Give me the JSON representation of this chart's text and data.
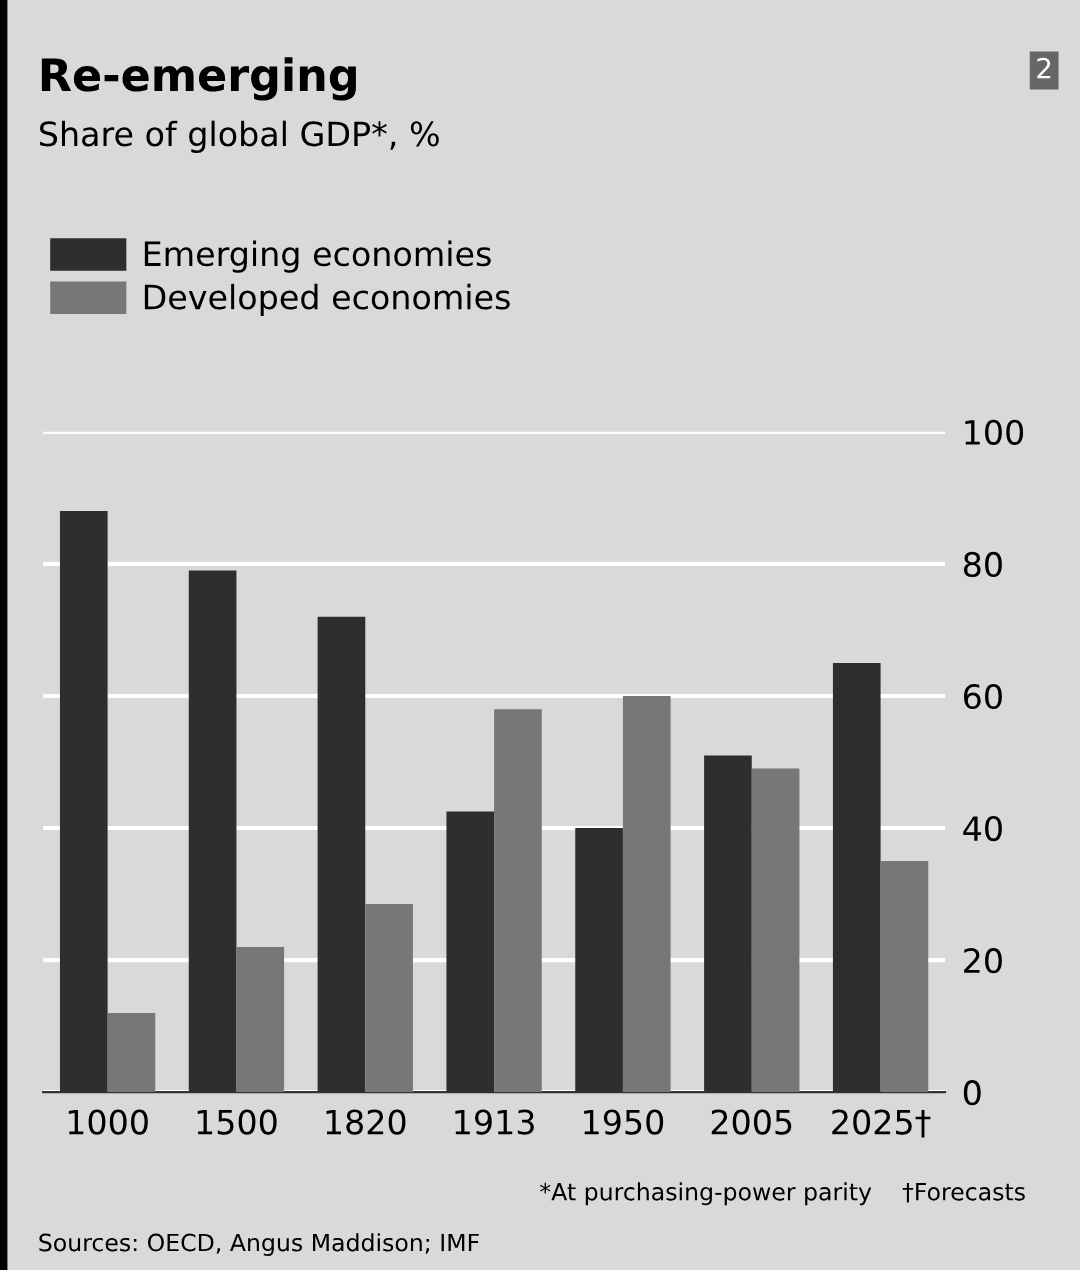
{
  "chart_data": {
    "type": "bar",
    "title": "Re-emerging",
    "subtitle": "Share of global GDP*, %",
    "categories": [
      "1000",
      "1500",
      "1820",
      "1913",
      "1950",
      "2005",
      "2025†"
    ],
    "series": [
      {
        "name": "Emerging economies",
        "color": "#2e2e2e",
        "values": [
          88,
          79,
          72,
          42.5,
          40,
          51,
          65
        ]
      },
      {
        "name": "Developed economies",
        "color": "#777777",
        "values": [
          12,
          22,
          28.5,
          58,
          60,
          49,
          35
        ]
      }
    ],
    "ylim": [
      0,
      100
    ],
    "yticks": [
      0,
      20,
      40,
      60,
      80,
      100
    ],
    "grid": "y",
    "legend": "top left",
    "annotations": [
      "2",
      "*At purchasing-power parity    †Forecasts",
      "Sources: OECD, Angus Maddison; IMF"
    ]
  }
}
